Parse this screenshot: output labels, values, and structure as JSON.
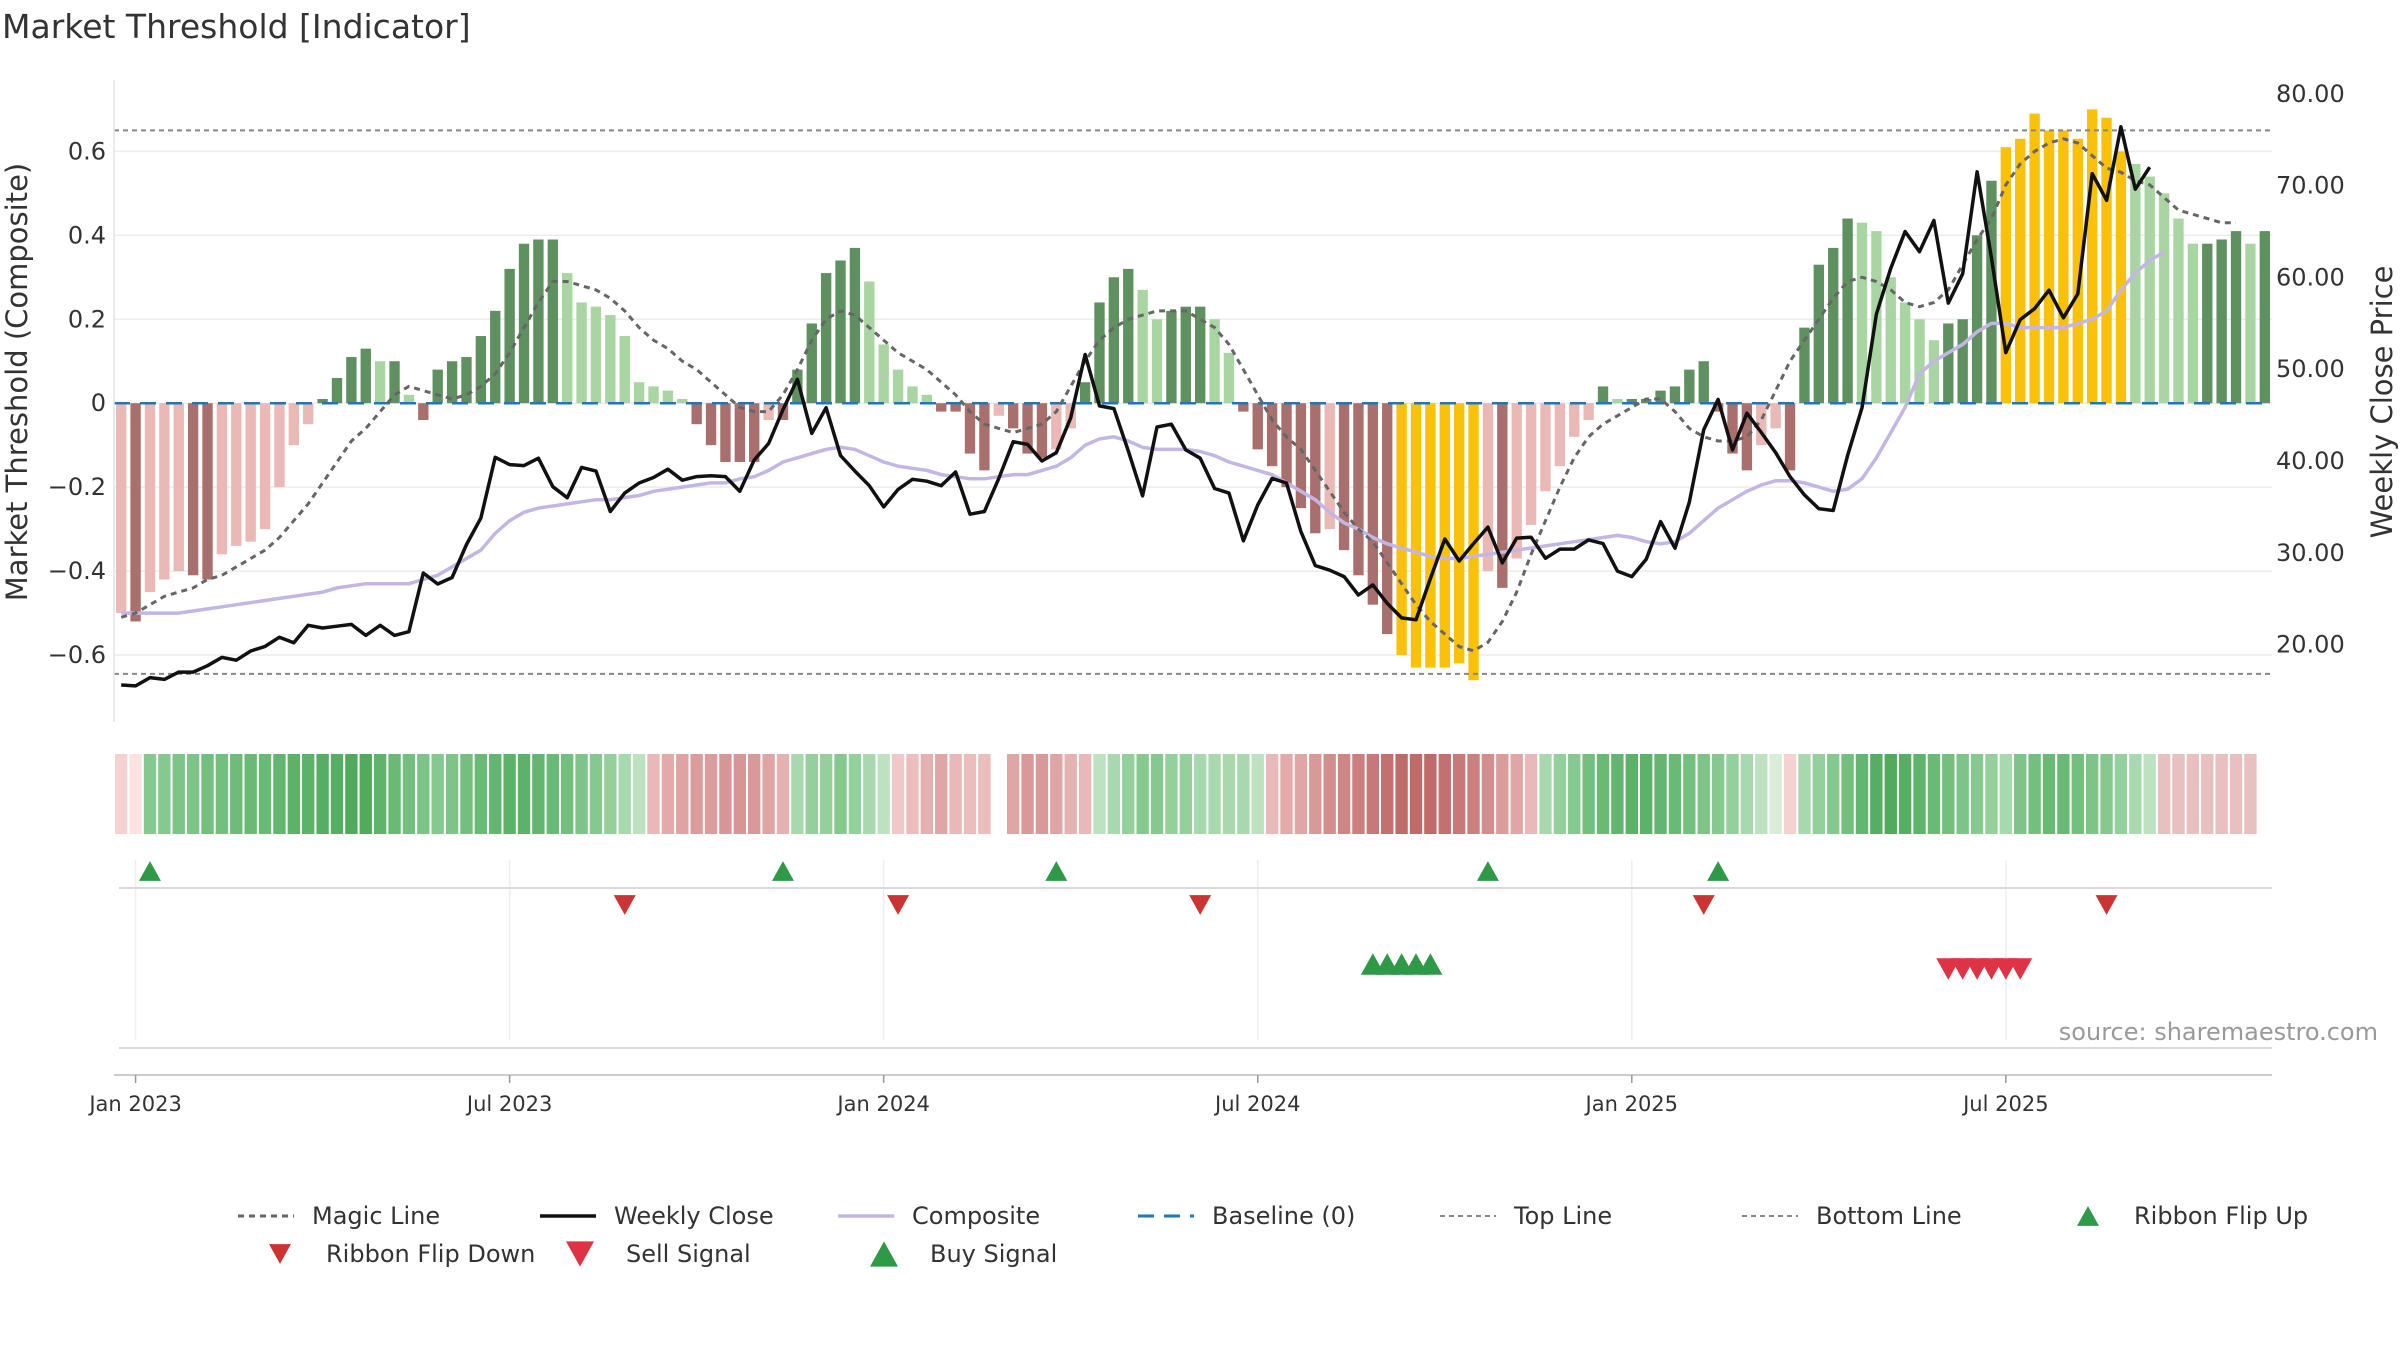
{
  "title": "Market Threshold [Indicator]",
  "source": "source: sharemaestro.com",
  "chart_data": {
    "type": "bar",
    "ylabel_left": "Market Threshold (Composite)",
    "ylabel_right": "Weekly Close Price",
    "ylim_left": [
      -0.75,
      0.77
    ],
    "ylim_right": [
      12.0,
      81.5
    ],
    "yticks_left": [
      {
        "v": 0.6,
        "label": "0.6"
      },
      {
        "v": 0.4,
        "label": "0.4"
      },
      {
        "v": 0.2,
        "label": "0.2"
      },
      {
        "v": 0,
        "label": "0"
      },
      {
        "v": -0.2,
        "label": "−0.2"
      },
      {
        "v": -0.4,
        "label": "−0.4"
      },
      {
        "v": -0.6,
        "label": "−0.6"
      }
    ],
    "yticks_right": [
      {
        "v": 80,
        "label": "80.00"
      },
      {
        "v": 70,
        "label": "70.00"
      },
      {
        "v": 60,
        "label": "60.00"
      },
      {
        "v": 50,
        "label": "50.00"
      },
      {
        "v": 40,
        "label": "40.00"
      },
      {
        "v": 30,
        "label": "30.00"
      },
      {
        "v": 20,
        "label": "20.00"
      }
    ],
    "x_ticks": [
      {
        "i": 1,
        "label": "Jan 2023"
      },
      {
        "i": 27,
        "label": "Jul 2023"
      },
      {
        "i": 53,
        "label": "Jan 2024"
      },
      {
        "i": 79,
        "label": "Jul 2024"
      },
      {
        "i": 105,
        "label": "Jan 2025"
      },
      {
        "i": 131,
        "label": "Jul 2025"
      }
    ],
    "top_line": 0.65,
    "bottom_line": -0.645,
    "baseline": 0,
    "bars": [
      -0.5,
      -0.52,
      -0.45,
      -0.42,
      -0.4,
      -0.41,
      -0.42,
      -0.36,
      -0.34,
      -0.33,
      -0.3,
      -0.2,
      -0.1,
      -0.05,
      0.01,
      0.06,
      0.11,
      0.13,
      0.1,
      0.1,
      0.02,
      -0.04,
      0.08,
      0.1,
      0.11,
      0.16,
      0.22,
      0.32,
      0.38,
      0.39,
      0.39,
      0.31,
      0.24,
      0.23,
      0.21,
      0.16,
      0.05,
      0.04,
      0.03,
      0.01,
      -0.05,
      -0.1,
      -0.14,
      -0.14,
      -0.14,
      -0.04,
      -0.04,
      0.08,
      0.19,
      0.31,
      0.34,
      0.37,
      0.29,
      0.14,
      0.08,
      0.04,
      0.02,
      -0.02,
      -0.02,
      -0.12,
      -0.16,
      -0.03,
      -0.06,
      -0.12,
      -0.13,
      -0.11,
      -0.06,
      0.05,
      0.24,
      0.3,
      0.32,
      0.27,
      0.2,
      0.22,
      0.23,
      0.23,
      0.2,
      0.12,
      -0.02,
      -0.11,
      -0.15,
      -0.2,
      -0.25,
      -0.31,
      -0.3,
      -0.35,
      -0.41,
      -0.48,
      -0.55,
      -0.6,
      -0.63,
      -0.63,
      -0.63,
      -0.62,
      -0.66,
      -0.4,
      -0.44,
      -0.37,
      -0.29,
      -0.21,
      -0.15,
      -0.08,
      -0.04,
      0.04,
      0.01,
      0.01,
      0.01,
      0.03,
      0.04,
      0.08,
      0.1,
      -0.02,
      -0.12,
      -0.16,
      -0.1,
      -0.06,
      -0.16,
      0.18,
      0.33,
      0.37,
      0.44,
      0.43,
      0.41,
      0.3,
      0.24,
      0.2,
      0.15,
      0.19,
      0.2,
      0.4,
      0.53,
      0.61,
      0.63,
      0.69,
      0.65,
      0.65,
      0.63,
      0.7,
      0.68,
      0.6,
      0.57,
      0.54,
      0.5,
      0.44,
      0.38,
      0.38,
      0.39,
      0.41,
      0.38,
      0.41
    ],
    "weekly_close": [
      15.6,
      15.5,
      16.4,
      16.2,
      17.0,
      17.0,
      17.7,
      18.6,
      18.3,
      19.3,
      19.8,
      20.8,
      20.2,
      22.1,
      21.8,
      22.0,
      22.2,
      21.0,
      22.1,
      21.0,
      21.4,
      27.8,
      26.6,
      27.3,
      30.9,
      33.8,
      40.4,
      39.6,
      39.5,
      40.3,
      37.2,
      36.0,
      39.3,
      38.9,
      34.5,
      36.5,
      37.6,
      38.2,
      39.1,
      37.9,
      38.3,
      38.4,
      38.3,
      36.7,
      40.1,
      41.9,
      45.6,
      48.9,
      43.0,
      45.8,
      40.6,
      38.9,
      37.3,
      35.0,
      36.9,
      38.0,
      37.8,
      37.3,
      38.8,
      34.2,
      34.5,
      38.1,
      42.1,
      41.8,
      40.0,
      40.9,
      44.7,
      51.6,
      46.0,
      45.7,
      41.1,
      36.2,
      43.7,
      44.0,
      41.2,
      40.3,
      37.0,
      36.5,
      31.3,
      35.2,
      38.1,
      37.6,
      32.3,
      28.6,
      28.1,
      27.4,
      25.4,
      26.5,
      24.5,
      22.9,
      22.7,
      27.2,
      31.5,
      29.1,
      31.0,
      32.8,
      28.9,
      31.6,
      31.7,
      29.4,
      30.4,
      30.4,
      31.4,
      31.0,
      28.0,
      27.4,
      29.3,
      33.4,
      30.5,
      35.5,
      43.4,
      46.7,
      41.2,
      45.2,
      43.1,
      40.9,
      38.3,
      36.3,
      34.8,
      34.6,
      40.6,
      45.8,
      56.0,
      61.0,
      65.0,
      62.8,
      66.2,
      57.2,
      60.4,
      71.5,
      62.1,
      51.8,
      55.4,
      56.6,
      58.6,
      55.6,
      58.2,
      71.3,
      68.4,
      76.4,
      69.6,
      72.0
    ],
    "composite": [
      -0.5,
      -0.5,
      -0.5,
      -0.5,
      -0.5,
      -0.495,
      -0.49,
      -0.485,
      -0.48,
      -0.475,
      -0.47,
      -0.465,
      -0.46,
      -0.455,
      -0.45,
      -0.44,
      -0.435,
      -0.43,
      -0.43,
      -0.43,
      -0.43,
      -0.42,
      -0.41,
      -0.39,
      -0.37,
      -0.35,
      -0.31,
      -0.28,
      -0.26,
      -0.25,
      -0.245,
      -0.24,
      -0.235,
      -0.23,
      -0.23,
      -0.225,
      -0.22,
      -0.21,
      -0.205,
      -0.2,
      -0.195,
      -0.19,
      -0.19,
      -0.18,
      -0.175,
      -0.16,
      -0.14,
      -0.13,
      -0.12,
      -0.11,
      -0.105,
      -0.11,
      -0.125,
      -0.14,
      -0.15,
      -0.155,
      -0.16,
      -0.17,
      -0.175,
      -0.18,
      -0.18,
      -0.175,
      -0.17,
      -0.17,
      -0.16,
      -0.15,
      -0.13,
      -0.1,
      -0.085,
      -0.08,
      -0.09,
      -0.105,
      -0.11,
      -0.11,
      -0.11,
      -0.115,
      -0.125,
      -0.14,
      -0.15,
      -0.16,
      -0.17,
      -0.19,
      -0.21,
      -0.23,
      -0.26,
      -0.285,
      -0.3,
      -0.32,
      -0.335,
      -0.345,
      -0.355,
      -0.365,
      -0.37,
      -0.37,
      -0.365,
      -0.36,
      -0.355,
      -0.35,
      -0.345,
      -0.34,
      -0.335,
      -0.33,
      -0.325,
      -0.32,
      -0.315,
      -0.32,
      -0.33,
      -0.335,
      -0.33,
      -0.31,
      -0.28,
      -0.25,
      -0.23,
      -0.21,
      -0.195,
      -0.185,
      -0.185,
      -0.19,
      -0.2,
      -0.21,
      -0.205,
      -0.18,
      -0.13,
      -0.07,
      -0.01,
      0.07,
      0.1,
      0.12,
      0.14,
      0.17,
      0.19,
      0.19,
      0.18,
      0.18,
      0.18,
      0.18,
      0.19,
      0.2,
      0.22,
      0.27,
      0.31,
      0.34,
      0.36
    ],
    "magic_line": [
      -0.51,
      -0.5,
      -0.48,
      -0.46,
      -0.45,
      -0.44,
      -0.42,
      -0.41,
      -0.39,
      -0.37,
      -0.35,
      -0.32,
      -0.28,
      -0.24,
      -0.19,
      -0.14,
      -0.09,
      -0.06,
      -0.02,
      0.02,
      0.04,
      0.03,
      0.02,
      0.01,
      0.02,
      0.04,
      0.07,
      0.12,
      0.18,
      0.24,
      0.29,
      0.29,
      0.28,
      0.27,
      0.25,
      0.22,
      0.18,
      0.15,
      0.13,
      0.1,
      0.08,
      0.05,
      0.02,
      -0.01,
      -0.02,
      -0.02,
      0.02,
      0.08,
      0.15,
      0.2,
      0.22,
      0.21,
      0.18,
      0.15,
      0.12,
      0.1,
      0.08,
      0.05,
      0.02,
      -0.02,
      -0.05,
      -0.06,
      -0.07,
      -0.06,
      -0.05,
      -0.02,
      0.04,
      0.1,
      0.15,
      0.18,
      0.2,
      0.21,
      0.22,
      0.22,
      0.22,
      0.2,
      0.18,
      0.14,
      0.08,
      0.02,
      -0.04,
      -0.08,
      -0.11,
      -0.16,
      -0.21,
      -0.26,
      -0.3,
      -0.33,
      -0.38,
      -0.43,
      -0.48,
      -0.52,
      -0.55,
      -0.58,
      -0.59,
      -0.57,
      -0.52,
      -0.45,
      -0.36,
      -0.28,
      -0.2,
      -0.13,
      -0.08,
      -0.05,
      -0.03,
      -0.01,
      0.01,
      0.01,
      -0.02,
      -0.06,
      -0.08,
      -0.09,
      -0.09,
      -0.08,
      -0.04,
      0.03,
      0.1,
      0.15,
      0.2,
      0.25,
      0.29,
      0.3,
      0.29,
      0.27,
      0.24,
      0.23,
      0.24,
      0.27,
      0.33,
      0.39,
      0.44,
      0.52,
      0.57,
      0.6,
      0.62,
      0.63,
      0.62,
      0.59,
      0.56,
      0.55,
      0.53,
      0.52,
      0.49,
      0.46,
      0.45,
      0.44,
      0.43,
      0.43
    ],
    "ribbon": [
      "#f5d2d2",
      "#fde2e2",
      "#86c98f",
      "#86c98f",
      "#7ec488",
      "#7ec488",
      "#72bf7e",
      "#72bf7e",
      "#6dbc79",
      "#68ba74",
      "#68ba74",
      "#62b66f",
      "#5bb268",
      "#5bb268",
      "#55ae63",
      "#55ae63",
      "#51ab5f",
      "#51ab5f",
      "#5db46a",
      "#68ba74",
      "#72bf7e",
      "#7ec488",
      "#86c98f",
      "#7ec488",
      "#72bf7e",
      "#68ba74",
      "#62b66f",
      "#5bb268",
      "#5bb268",
      "#62b66f",
      "#68ba74",
      "#72bf7e",
      "#7ec488",
      "#86c98f",
      "#94d09b",
      "#a8d9ae",
      "#bde2c0",
      "#e9b8b8",
      "#e4aaaa",
      "#e0a3a3",
      "#dc9c9c",
      "#dc9c9c",
      "#d89595",
      "#d89595",
      "#d99999",
      "#dfa5a5",
      "#e5b2b2",
      "#a8d9ae",
      "#94d09b",
      "#94d09b",
      "#86c98f",
      "#94d09b",
      "#a8d9ae",
      "#bde2c0",
      "#f0c8c8",
      "#ebbdbd",
      "#e4b0b0",
      "#e0a6a6",
      "#e9b8b8",
      "#ebbdbd",
      "#ebbdbd",
      "#ffffff",
      "#e0a6a6",
      "#d99999",
      "#d99999",
      "#dfa5a5",
      "#e5b2b2",
      "#e9b8b8",
      "#bde2c0",
      "#a8d9ae",
      "#94d09b",
      "#86c98f",
      "#86c98f",
      "#94d09b",
      "#94d09b",
      "#a8d9ae",
      "#a8d9ae",
      "#a8d9ae",
      "#a8d9ae",
      "#bde2c0",
      "#e9b8b8",
      "#e4aaaa",
      "#e0a6a6",
      "#d99999",
      "#d48d8d",
      "#d08585",
      "#cc7f7f",
      "#c87878",
      "#c47070",
      "#c06a6a",
      "#c06a6a",
      "#c06a6a",
      "#c47070",
      "#c87878",
      "#cc7f7f",
      "#d48d8d",
      "#dc9c9c",
      "#e0a6a6",
      "#e9b8b8",
      "#a8d9ae",
      "#94d09b",
      "#86c98f",
      "#72bf7e",
      "#68ba74",
      "#62b66f",
      "#5bb268",
      "#5bb268",
      "#62b66f",
      "#68ba74",
      "#72bf7e",
      "#7ec488",
      "#86c98f",
      "#94d09b",
      "#a8d9ae",
      "#bde2c0",
      "#d8eed9",
      "#f5d2d2",
      "#a8d9ae",
      "#94d09b",
      "#86c98f",
      "#72bf7e",
      "#62b66f",
      "#55ae63",
      "#51ab5f",
      "#55ae63",
      "#5db46a",
      "#68ba74",
      "#72bf7e",
      "#7ec488",
      "#86c98f",
      "#94d09b",
      "#a8d9ae",
      "#7ec488",
      "#72bf7e",
      "#68ba74",
      "#68ba74",
      "#72bf7e",
      "#7ec488",
      "#86c98f",
      "#94d09b",
      "#a8d9ae",
      "#bde2c0",
      "#e9c0c0",
      "#e9c0c0",
      "#e9c0c0",
      "#e9c0c0",
      "#e9c0c0",
      "#e9c0c0",
      "#e9c0c0"
    ],
    "ribbon_flip_up": [
      2,
      46,
      65,
      95,
      111
    ],
    "ribbon_flip_down": [
      35,
      54,
      75,
      110,
      138
    ],
    "buy_signal": [
      87,
      88,
      89,
      90,
      91
    ],
    "sell_signal": [
      127,
      128,
      129,
      130,
      131,
      132
    ],
    "colors": {
      "strong_green": "#5f9160",
      "light_green": "#a9d5a3",
      "strong_red": "#a86f6c",
      "light_red": "#eab9b5",
      "extreme": "#f9c10a",
      "weekly_close": "#111111",
      "composite": "#c4b6e4",
      "magic_line": "#666666",
      "baseline": "#1f77b4",
      "top_line": "#888888",
      "bottom_line": "#888888",
      "flip_up": "#2e9a48",
      "flip_down": "#cc3333",
      "sell": "#dd3344",
      "buy": "#2e9a48"
    },
    "legend": [
      {
        "key": "magic",
        "label": "Magic Line"
      },
      {
        "key": "close",
        "label": "Weekly Close"
      },
      {
        "key": "composite",
        "label": "Composite"
      },
      {
        "key": "baseline",
        "label": "Baseline (0)"
      },
      {
        "key": "top",
        "label": "Top Line"
      },
      {
        "key": "bottom",
        "label": "Bottom Line"
      },
      {
        "key": "flip_up",
        "label": "Ribbon Flip Up"
      },
      {
        "key": "flip_down",
        "label": "Ribbon Flip Down"
      },
      {
        "key": "sell",
        "label": "Sell Signal"
      },
      {
        "key": "buy",
        "label": "Buy Signal"
      }
    ]
  }
}
